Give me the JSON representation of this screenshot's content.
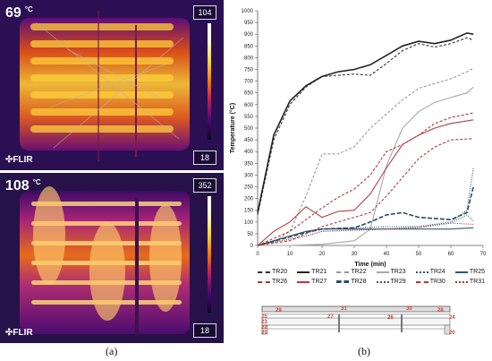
{
  "thermal": {
    "top": {
      "readout": "69",
      "unit": "°C",
      "scale_max": "104",
      "scale_min": "18",
      "brand": "FLIR"
    },
    "bottom": {
      "readout": "108",
      "unit": "°C",
      "scale_max": "352",
      "scale_min": "18",
      "brand": "FLIR"
    }
  },
  "labels": {
    "a": "(a)",
    "b": "(b)"
  },
  "chart_data": {
    "type": "line",
    "xlabel": "Time (min)",
    "ylabel": "Temperature (°C)",
    "xlim": [
      0,
      70
    ],
    "ylim": [
      0,
      1000
    ],
    "xticks": [
      0,
      10,
      20,
      30,
      40,
      50,
      60,
      70
    ],
    "yticks": [
      0,
      50,
      100,
      150,
      200,
      250,
      300,
      350,
      400,
      450,
      500,
      550,
      600,
      650,
      700,
      750,
      800,
      850,
      900,
      950,
      1000
    ],
    "grid": false,
    "legend_placement": "bottom",
    "series": [
      {
        "name": "TR20",
        "color": "#333333",
        "style": "dashed",
        "x": [
          0,
          5,
          10,
          15,
          20,
          25,
          30,
          35,
          40,
          45,
          50,
          55,
          60,
          65,
          67
        ],
        "y": [
          130,
          450,
          600,
          675,
          720,
          725,
          730,
          725,
          775,
          830,
          860,
          845,
          860,
          885,
          875
        ]
      },
      {
        "name": "TR21",
        "color": "#222222",
        "style": "solid",
        "x": [
          0,
          5,
          10,
          15,
          20,
          25,
          30,
          35,
          40,
          45,
          50,
          55,
          60,
          65,
          67
        ],
        "y": [
          140,
          470,
          615,
          680,
          720,
          740,
          750,
          770,
          810,
          850,
          870,
          860,
          875,
          905,
          900
        ]
      },
      {
        "name": "TR22",
        "color": "#9b9b9b",
        "style": "dashed",
        "x": [
          0,
          5,
          10,
          15,
          20,
          25,
          30,
          35,
          40,
          45,
          50,
          55,
          60,
          65,
          67
        ],
        "y": [
          0,
          15,
          60,
          210,
          390,
          390,
          420,
          500,
          560,
          620,
          670,
          690,
          710,
          740,
          755
        ]
      },
      {
        "name": "TR23",
        "color": "#a7a7a7",
        "style": "solid",
        "x": [
          0,
          10,
          20,
          30,
          35,
          40,
          45,
          50,
          55,
          60,
          65,
          67
        ],
        "y": [
          0,
          0,
          5,
          20,
          70,
          340,
          500,
          570,
          610,
          630,
          650,
          675
        ]
      },
      {
        "name": "TR24",
        "color": "#2d5267",
        "style": "dotted",
        "x": [
          0,
          15,
          20,
          30,
          40,
          50,
          55,
          60,
          65,
          67
        ],
        "y": [
          0,
          60,
          70,
          75,
          80,
          80,
          90,
          100,
          150,
          330
        ]
      },
      {
        "name": "TR25",
        "color": "#35576b",
        "style": "solid",
        "x": [
          0,
          15,
          20,
          30,
          40,
          50,
          60,
          67
        ],
        "y": [
          0,
          60,
          70,
          70,
          70,
          70,
          70,
          75
        ]
      },
      {
        "name": "TR26",
        "color": "#a93b3b",
        "style": "dashed",
        "x": [
          0,
          10,
          20,
          25,
          30,
          35,
          40,
          45,
          50,
          55,
          60,
          67
        ],
        "y": [
          0,
          60,
          160,
          205,
          240,
          300,
          400,
          430,
          470,
          520,
          545,
          565
        ]
      },
      {
        "name": "TR27",
        "color": "#b53f3f",
        "style": "solid",
        "x": [
          0,
          5,
          10,
          15,
          20,
          25,
          30,
          35,
          40,
          45,
          50,
          55,
          60,
          67
        ],
        "y": [
          0,
          60,
          100,
          165,
          120,
          145,
          150,
          220,
          330,
          430,
          470,
          500,
          520,
          535
        ]
      },
      {
        "name": "TR28",
        "color": "#274c64",
        "style": "long-dashed",
        "x": [
          0,
          15,
          20,
          30,
          35,
          40,
          45,
          50,
          55,
          60,
          65,
          67
        ],
        "y": [
          0,
          55,
          70,
          75,
          100,
          130,
          140,
          120,
          115,
          110,
          140,
          250
        ]
      },
      {
        "name": "TR29",
        "color": "#36576c",
        "style": "dotted",
        "x": [
          0,
          15,
          20,
          30,
          40,
          50,
          60,
          65,
          67
        ],
        "y": [
          0,
          40,
          60,
          65,
          70,
          75,
          95,
          130,
          105
        ]
      },
      {
        "name": "TR30",
        "color": "#b33b3b",
        "style": "dashed",
        "x": [
          0,
          10,
          20,
          30,
          35,
          40,
          45,
          50,
          55,
          60,
          67
        ],
        "y": [
          0,
          20,
          80,
          120,
          140,
          210,
          290,
          370,
          420,
          450,
          455
        ]
      },
      {
        "name": "TR31",
        "color": "#9e3d3d",
        "style": "dotted",
        "x": [
          0,
          15,
          20,
          30,
          40,
          50,
          60,
          67
        ],
        "y": [
          0,
          40,
          60,
          65,
          70,
          80,
          95,
          90
        ]
      }
    ]
  },
  "schematic": {
    "sensor_labels": [
      "29",
      "25",
      "23",
      "22",
      "21",
      "31",
      "27",
      "26",
      "30",
      "28",
      "24",
      "20"
    ],
    "sensor_color": "#d43d2b"
  }
}
